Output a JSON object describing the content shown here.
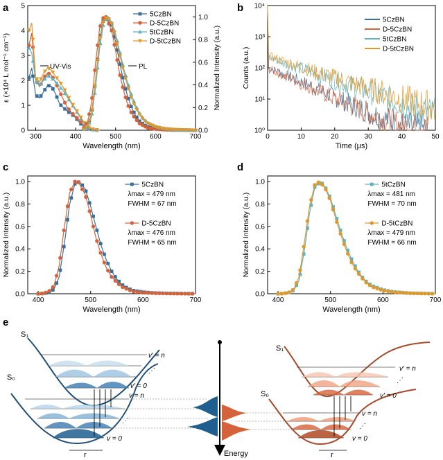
{
  "colors": {
    "blue": "#3a6e9a",
    "orange": "#d4623a",
    "teal": "#5fb3c0",
    "gold": "#e0982a",
    "dark_blue": "#1f4e79",
    "brown": "#a64a2a"
  },
  "chart_data": [
    {
      "panel": "a",
      "type": "line",
      "xlabel": "Wavelength (nm)",
      "ylabel": "ε (×10⁴ L mol⁻¹ cm⁻¹)",
      "ylabel_right": "Normalized Intensity (a.u.)",
      "xlim": [
        280,
        700
      ],
      "ylim": [
        0,
        5
      ],
      "ylim_right": [
        0,
        1.1
      ],
      "xticks": [
        "300",
        "400",
        "500",
        "600",
        "700"
      ],
      "yticks": [
        "0",
        "1",
        "2",
        "3",
        "4",
        "5"
      ],
      "yticks_right": [
        "0.0",
        "0.2",
        "0.4",
        "0.6",
        "0.8",
        "1.0"
      ],
      "annotations": [
        "UV-Vis",
        "PL"
      ],
      "legend": [
        "5CzBN",
        "D-5CzBN",
        "5tCzBN",
        "D-5tCzBN"
      ],
      "legend_position": "top-right",
      "absorption": [
        {
          "name": "5CzBN",
          "x": [
            283,
            290,
            300,
            310,
            320,
            330,
            340,
            350,
            360,
            370,
            380,
            390,
            400,
            410,
            420,
            430,
            440,
            450,
            460
          ],
          "y": [
            2.1,
            2.5,
            1.4,
            1.3,
            1.55,
            1.8,
            1.75,
            1.45,
            1.05,
            0.9,
            0.75,
            0.65,
            0.5,
            0.3,
            0.15,
            0.07,
            0.03,
            0.01,
            0.0
          ]
        },
        {
          "name": "D-5CzBN",
          "x": [
            283,
            290,
            300,
            310,
            320,
            330,
            340,
            350,
            360,
            370,
            380,
            390,
            400,
            410,
            420,
            430,
            440,
            450,
            460
          ],
          "y": [
            3.4,
            3.9,
            2.0,
            1.75,
            2.1,
            2.3,
            2.2,
            1.9,
            1.55,
            1.2,
            0.9,
            0.7,
            0.55,
            0.38,
            0.22,
            0.1,
            0.04,
            0.01,
            0.0
          ]
        },
        {
          "name": "5tCzBN",
          "x": [
            283,
            290,
            300,
            310,
            320,
            330,
            340,
            350,
            360,
            370,
            380,
            390,
            400,
            410,
            420,
            430,
            440,
            450,
            460
          ],
          "y": [
            3.3,
            3.1,
            2.0,
            1.8,
            2.0,
            2.2,
            2.1,
            1.95,
            1.75,
            1.55,
            1.3,
            1.05,
            0.8,
            0.55,
            0.3,
            0.13,
            0.05,
            0.01,
            0.0
          ]
        },
        {
          "name": "D-5tCzBN",
          "x": [
            283,
            290,
            300,
            310,
            320,
            330,
            340,
            350,
            360,
            370,
            380,
            390,
            400,
            410,
            420,
            430,
            440,
            450,
            460
          ],
          "y": [
            4.0,
            4.3,
            2.1,
            1.95,
            2.3,
            2.5,
            2.4,
            2.15,
            1.95,
            1.7,
            1.4,
            1.1,
            0.85,
            0.6,
            0.35,
            0.15,
            0.06,
            0.02,
            0.0
          ]
        }
      ],
      "pl_normalized": [
        {
          "name": "5CzBN",
          "x": [
            420,
            430,
            440,
            450,
            460,
            470,
            479,
            490,
            500,
            510,
            520,
            530,
            540,
            550,
            560,
            570,
            580,
            600,
            620,
            650,
            700
          ],
          "y": [
            0.01,
            0.04,
            0.15,
            0.45,
            0.8,
            0.98,
            1.0,
            0.93,
            0.78,
            0.6,
            0.43,
            0.3,
            0.2,
            0.13,
            0.08,
            0.05,
            0.03,
            0.015,
            0.007,
            0.003,
            0.0
          ]
        },
        {
          "name": "D-5CzBN",
          "x": [
            420,
            430,
            440,
            450,
            460,
            470,
            476,
            490,
            500,
            510,
            520,
            530,
            540,
            550,
            560,
            570,
            580,
            600,
            620,
            650,
            700
          ],
          "y": [
            0.02,
            0.07,
            0.25,
            0.6,
            0.9,
            1.0,
            1.0,
            0.88,
            0.7,
            0.5,
            0.35,
            0.23,
            0.15,
            0.1,
            0.06,
            0.04,
            0.02,
            0.01,
            0.005,
            0.002,
            0.0
          ]
        },
        {
          "name": "5tCzBN",
          "x": [
            420,
            430,
            440,
            450,
            460,
            470,
            481,
            490,
            500,
            510,
            520,
            530,
            540,
            550,
            560,
            570,
            580,
            600,
            620,
            650,
            700
          ],
          "y": [
            0.01,
            0.03,
            0.12,
            0.38,
            0.72,
            0.95,
            1.0,
            0.95,
            0.85,
            0.7,
            0.55,
            0.42,
            0.31,
            0.22,
            0.15,
            0.1,
            0.07,
            0.035,
            0.017,
            0.006,
            0.0
          ]
        },
        {
          "name": "D-5tCzBN",
          "x": [
            420,
            430,
            440,
            450,
            460,
            470,
            479,
            490,
            500,
            510,
            520,
            530,
            540,
            550,
            560,
            570,
            580,
            600,
            620,
            650,
            700
          ],
          "y": [
            0.01,
            0.04,
            0.15,
            0.45,
            0.78,
            0.97,
            1.0,
            0.94,
            0.83,
            0.67,
            0.52,
            0.39,
            0.28,
            0.2,
            0.14,
            0.09,
            0.06,
            0.03,
            0.014,
            0.005,
            0.0
          ]
        }
      ]
    },
    {
      "panel": "b",
      "type": "line",
      "xlabel": "Time (μs)",
      "ylabel": "Counts (a.u.)",
      "xlim": [
        0,
        50
      ],
      "ylim": [
        1,
        10000
      ],
      "yscale": "log",
      "xticks": [
        "0",
        "10",
        "20",
        "30",
        "40",
        "50"
      ],
      "yticks": [
        "10⁰",
        "10¹",
        "10²",
        "10³",
        "10⁴"
      ],
      "legend": [
        "5CzBN",
        "D-5CzBN",
        "5tCzBN",
        "D-5tCzBN"
      ],
      "legend_position": "top-right",
      "series": [
        {
          "name": "5CzBN",
          "peak": 10000,
          "x": [
            0.3,
            5,
            10,
            15,
            20,
            25,
            30,
            35,
            40,
            45,
            48
          ],
          "y": [
            100,
            60,
            35,
            20,
            11,
            6.5,
            3.8,
            2.3,
            1.4,
            1.1,
            1.0
          ]
        },
        {
          "name": "D-5CzBN",
          "peak": 8000,
          "x": [
            0.3,
            5,
            10,
            15,
            20,
            25,
            30,
            35,
            40,
            45,
            48
          ],
          "y": [
            90,
            55,
            32,
            18,
            10,
            6,
            3.5,
            2.1,
            1.3,
            1.05,
            1.0
          ]
        },
        {
          "name": "5tCzBN",
          "peak": 9000,
          "x": [
            0.3,
            5,
            10,
            15,
            20,
            25,
            30,
            35,
            40,
            45,
            50
          ],
          "y": [
            220,
            140,
            95,
            60,
            40,
            26,
            17,
            11,
            7,
            4.5,
            3
          ]
        },
        {
          "name": "D-5tCzBN",
          "peak": 10000,
          "x": [
            0.3,
            5,
            10,
            15,
            20,
            25,
            30,
            35,
            40,
            45,
            50
          ],
          "y": [
            240,
            160,
            105,
            70,
            48,
            32,
            22,
            15,
            10,
            7,
            5
          ]
        }
      ]
    },
    {
      "panel": "c",
      "type": "line",
      "xlabel": "Wavelength (nm)",
      "ylabel": "Normalized Intensity (a.u.)",
      "xlim": [
        380,
        700
      ],
      "ylim": [
        0,
        1.05
      ],
      "xticks": [
        "400",
        "500",
        "600",
        "700"
      ],
      "yticks": [
        "0.0",
        "0.2",
        "0.4",
        "0.6",
        "0.8",
        "1.0"
      ],
      "legend_position": "right",
      "series": [
        {
          "name": "5CzBN",
          "lambda_max": "λmax = 479 nm",
          "fwhm": "FWHM = 67 nm",
          "x": [
            400,
            410,
            420,
            430,
            440,
            450,
            460,
            470,
            479,
            490,
            500,
            510,
            520,
            530,
            540,
            550,
            560,
            570,
            580,
            600,
            620,
            650,
            700
          ],
          "y": [
            0.0,
            0.002,
            0.01,
            0.04,
            0.15,
            0.45,
            0.8,
            0.98,
            1.0,
            0.93,
            0.78,
            0.6,
            0.43,
            0.3,
            0.2,
            0.13,
            0.08,
            0.05,
            0.03,
            0.015,
            0.007,
            0.003,
            0.0
          ]
        },
        {
          "name": "D-5CzBN",
          "lambda_max": "λmax = 476 nm",
          "fwhm": "FWHM = 65 nm",
          "x": [
            400,
            410,
            420,
            430,
            440,
            450,
            460,
            470,
            476,
            490,
            500,
            510,
            520,
            530,
            540,
            550,
            560,
            570,
            580,
            600,
            620,
            650,
            700
          ],
          "y": [
            0.0,
            0.004,
            0.02,
            0.07,
            0.25,
            0.6,
            0.9,
            1.0,
            1.0,
            0.88,
            0.7,
            0.5,
            0.35,
            0.23,
            0.15,
            0.1,
            0.06,
            0.04,
            0.02,
            0.01,
            0.005,
            0.002,
            0.0
          ]
        }
      ]
    },
    {
      "panel": "d",
      "type": "line",
      "xlabel": "Wavelength (nm)",
      "ylabel": "Normalized Intensity (a.u.)",
      "xlim": [
        380,
        700
      ],
      "ylim": [
        0,
        1.05
      ],
      "xticks": [
        "400",
        "500",
        "600",
        "700"
      ],
      "yticks": [
        "0.0",
        "0.2",
        "0.4",
        "0.6",
        "0.8",
        "1.0"
      ],
      "legend_position": "right",
      "series": [
        {
          "name": "5tCzBN",
          "lambda_max": "λmax = 481 nm",
          "fwhm": "FWHM = 70 nm",
          "x": [
            400,
            410,
            420,
            430,
            440,
            450,
            460,
            470,
            481,
            490,
            500,
            510,
            520,
            530,
            540,
            550,
            560,
            570,
            580,
            600,
            620,
            650,
            700
          ],
          "y": [
            0.0,
            0.002,
            0.01,
            0.03,
            0.12,
            0.38,
            0.72,
            0.95,
            1.0,
            0.95,
            0.85,
            0.7,
            0.55,
            0.42,
            0.31,
            0.22,
            0.15,
            0.1,
            0.07,
            0.035,
            0.017,
            0.006,
            0.0
          ]
        },
        {
          "name": "D-5tCzBN",
          "lambda_max": "λmax = 479 nm",
          "fwhm": "FWHM = 66 nm",
          "x": [
            400,
            410,
            420,
            430,
            440,
            450,
            460,
            470,
            479,
            490,
            500,
            510,
            520,
            530,
            540,
            550,
            560,
            570,
            580,
            600,
            620,
            650,
            700
          ],
          "y": [
            0.0,
            0.002,
            0.01,
            0.04,
            0.15,
            0.45,
            0.78,
            0.97,
            1.0,
            0.94,
            0.83,
            0.67,
            0.52,
            0.39,
            0.28,
            0.2,
            0.14,
            0.09,
            0.06,
            0.03,
            0.014,
            0.005,
            0.0
          ]
        }
      ]
    }
  ],
  "panel_e": {
    "labels": {
      "s1": "S₁",
      "s0": "S₀",
      "v_prime_n": "v′ = n",
      "v_prime_0": "v′ = 0",
      "v_n": "v = n",
      "v_0": "v = 0",
      "r": "r",
      "energy": "Energy",
      "ellipsis": "⋰"
    }
  },
  "panel_letters": [
    "a",
    "b",
    "c",
    "d",
    "e"
  ]
}
